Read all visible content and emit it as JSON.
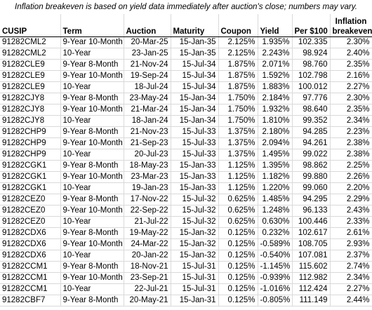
{
  "title": "Inflation breakeven is based on yield data immediately after auction's close; numbers may vary.",
  "table": {
    "columns": [
      "CUSIP",
      "Term",
      "Auction",
      "Maturity",
      "Coupon",
      "Yield",
      "Per $100",
      "Inflation breakeven"
    ],
    "rows": [
      [
        "91282CML2",
        "9-Year 10-Month",
        "20-Mar-25",
        "15-Jan-35",
        "2.125%",
        "1.935%",
        "102.335",
        "2.30%"
      ],
      [
        "91282CML2",
        "10-Year",
        "23-Jan-25",
        "15-Jan-35",
        "2.125%",
        "2.243%",
        "98.924",
        "2.40%"
      ],
      [
        "91282CLE9",
        "9-Year 8-Month",
        "21-Nov-24",
        "15-Jul-34",
        "1.875%",
        "2.071%",
        "98.760",
        "2.35%"
      ],
      [
        "91282CLE9",
        "9-Year 10-Month",
        "19-Sep-24",
        "15-Jul-34",
        "1.875%",
        "1.592%",
        "102.798",
        "2.16%"
      ],
      [
        "91282CLE9",
        "10-Year",
        "18-Jul-24",
        "15-Jul-34",
        "1.875%",
        "1.883%",
        "100.012",
        "2.27%"
      ],
      [
        "91282CJY8",
        "9-Year 8-Month",
        "23-May-24",
        "15-Jan-34",
        "1.750%",
        "2.184%",
        "97.776",
        "2.30%"
      ],
      [
        "91282CJY8",
        "9-Year 10-Month",
        "21-Mar-24",
        "15-Jan-34",
        "1.750%",
        "1.932%",
        "98.640",
        "2.35%"
      ],
      [
        "91282CJY8",
        "10-Year",
        "18-Jan-24",
        "15-Jan-34",
        "1.750%",
        "1.810%",
        "99.352",
        "2.34%"
      ],
      [
        "91282CHP9",
        "9-Year 8-Month",
        "21-Nov-23",
        "15-Jul-33",
        "1.375%",
        "2.180%",
        "94.285",
        "2.23%"
      ],
      [
        "91282CHP9",
        "9-Year 10-Month",
        "21-Sep-23",
        "15-Jul-33",
        "1.375%",
        "2.094%",
        "94.261",
        "2.38%"
      ],
      [
        "91282CHP9",
        "10-Year",
        "20-Jul-23",
        "15-Jul-33",
        "1.375%",
        "1.495%",
        "99.022",
        "2.38%"
      ],
      [
        "91282CGK1",
        "9-Year 8-Month",
        "18-May-23",
        "15-Jan-33",
        "1.125%",
        "1.395%",
        "98.862",
        "2.25%"
      ],
      [
        "91282CGK1",
        "9-Year 10-Month",
        "23-Mar-23",
        "15-Jan-33",
        "1.125%",
        "1.182%",
        "99.880",
        "2.26%"
      ],
      [
        "91282CGK1",
        "10-Year",
        "19-Jan-23",
        "15-Jan-33",
        "1.125%",
        "1.220%",
        "99.060",
        "2.20%"
      ],
      [
        "91282CEZ0",
        "9-Year 8-Month",
        "17-Nov-22",
        "15-Jul-32",
        "0.625%",
        "1.485%",
        "94.295",
        "2.29%"
      ],
      [
        "91282CEZ0",
        "9-Year 10-Month",
        "22-Sep-22",
        "15-Jul-32",
        "0.625%",
        "1.248%",
        "96.133",
        "2.43%"
      ],
      [
        "91282CEZ0",
        "10-Year",
        "21-Jul-22",
        "15-Jul-32",
        "0.625%",
        "0.630%",
        "100.446",
        "2.33%"
      ],
      [
        "91282CDX6",
        "9-Year 8-Month",
        "19-May-22",
        "15-Jan-32",
        "0.125%",
        "0.232%",
        "102.617",
        "2.61%"
      ],
      [
        "91282CDX6",
        "9-Year 10-Month",
        "24-Mar-22",
        "15-Jan-32",
        "0.125%",
        "-0.589%",
        "108.705",
        "2.93%"
      ],
      [
        "91282CDX6",
        "10-Year",
        "20-Jan-22",
        "15-Jan-32",
        "0.125%",
        "-0.540%",
        "107.081",
        "2.37%"
      ],
      [
        "91282CCM1",
        "9-Year 8-Month",
        "18-Nov-21",
        "15-Jul-31",
        "0.125%",
        "-1.145%",
        "115.602",
        "2.74%"
      ],
      [
        "91282CCM1",
        "9-Year 10-Month",
        "23-Sep-21",
        "15-Jul-31",
        "0.125%",
        "-0.939%",
        "112.982",
        "2.34%"
      ],
      [
        "91282CCM1",
        "10-Year",
        "22-Jul-21",
        "15-Jul-31",
        "0.125%",
        "-1.016%",
        "112.424",
        "2.27%"
      ],
      [
        "91282CBF7",
        "9-Year 8-Month",
        "20-May-21",
        "15-Jan-31",
        "0.125%",
        "-0.805%",
        "111.149",
        "2.44%"
      ]
    ]
  }
}
